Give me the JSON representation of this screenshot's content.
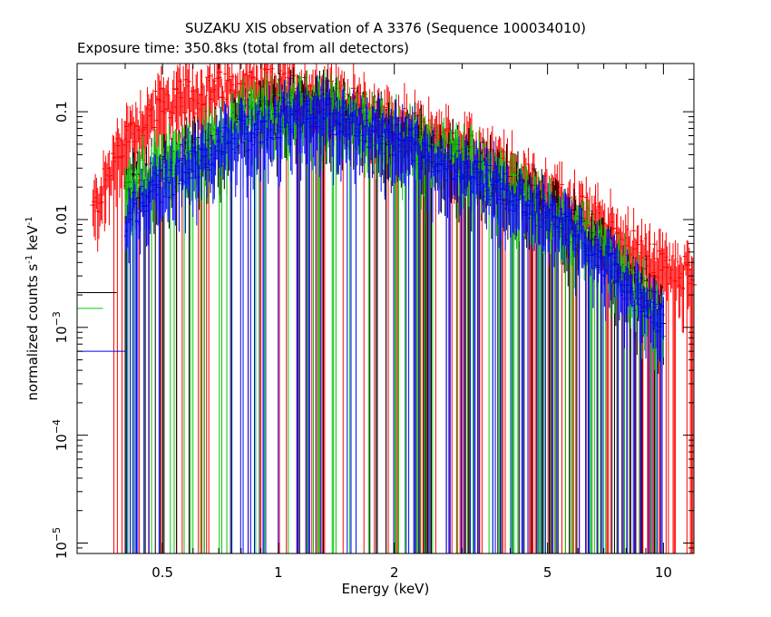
{
  "chart_data": {
    "type": "scatter",
    "title": "SUZAKU XIS observation of A 3376 (Sequence 100034010)",
    "subtitle": "Exposure time: 350.8ks (total from all detectors)",
    "xlabel": "Energy (keV)",
    "ylabel_main": "normalized counts s",
    "ylabel_sup1": "-1",
    "ylabel_mid": " keV",
    "ylabel_sup2": "-1",
    "x_scale": "log",
    "y_scale": "log",
    "xlim": [
      0.3,
      12
    ],
    "ylim": [
      8e-06,
      0.28
    ],
    "x_ticks": [
      {
        "value": 0.5,
        "label": "0.5"
      },
      {
        "value": 1,
        "label": "1"
      },
      {
        "value": 2,
        "label": "2"
      },
      {
        "value": 5,
        "label": "5"
      },
      {
        "value": 10,
        "label": "10"
      }
    ],
    "y_ticks": [
      {
        "value": 0.1,
        "base": "0.1",
        "exp": ""
      },
      {
        "value": 0.01,
        "base": "0.01",
        "exp": ""
      },
      {
        "value": 0.001,
        "base": "10",
        "exp": "−3"
      },
      {
        "value": 0.0001,
        "base": "10",
        "exp": "−4"
      },
      {
        "value": 1e-05,
        "base": "10",
        "exp": "−5"
      }
    ],
    "grid": false,
    "legend": "none",
    "series": [
      {
        "color": "#ff0000",
        "points": [
          [
            0.33,
            0.012
          ],
          [
            0.4,
            0.06
          ],
          [
            0.5,
            0.12
          ],
          [
            0.6,
            0.14
          ],
          [
            0.7,
            0.16
          ],
          [
            0.8,
            0.17
          ],
          [
            1.0,
            0.17
          ],
          [
            1.2,
            0.15
          ],
          [
            1.5,
            0.12
          ],
          [
            2.0,
            0.08
          ],
          [
            3.0,
            0.045
          ],
          [
            4.0,
            0.028
          ],
          [
            5.0,
            0.018
          ],
          [
            6.0,
            0.012
          ],
          [
            7.0,
            0.009
          ],
          [
            8.0,
            0.006
          ],
          [
            10.0,
            0.0035
          ],
          [
            12.0,
            0.003
          ]
        ]
      },
      {
        "color": "#000000",
        "points": [
          [
            0.4,
            0.02
          ],
          [
            0.5,
            0.028
          ],
          [
            0.6,
            0.038
          ],
          [
            0.7,
            0.055
          ],
          [
            0.8,
            0.075
          ],
          [
            1.0,
            0.1
          ],
          [
            1.2,
            0.11
          ],
          [
            1.5,
            0.09
          ],
          [
            2.0,
            0.06
          ],
          [
            3.0,
            0.035
          ],
          [
            4.0,
            0.02
          ],
          [
            5.0,
            0.012
          ],
          [
            6.0,
            0.008
          ],
          [
            7.0,
            0.0045
          ],
          [
            8.0,
            0.003
          ],
          [
            10.0,
            0.0012
          ]
        ]
      },
      {
        "color": "#00cc00",
        "points": [
          [
            0.4,
            0.022
          ],
          [
            0.5,
            0.032
          ],
          [
            0.6,
            0.042
          ],
          [
            0.7,
            0.06
          ],
          [
            0.8,
            0.08
          ],
          [
            1.0,
            0.1
          ],
          [
            1.2,
            0.11
          ],
          [
            1.5,
            0.09
          ],
          [
            2.0,
            0.06
          ],
          [
            3.0,
            0.035
          ],
          [
            4.0,
            0.02
          ],
          [
            5.0,
            0.012
          ],
          [
            6.0,
            0.008
          ],
          [
            7.0,
            0.005
          ],
          [
            8.0,
            0.003
          ],
          [
            10.0,
            0.0012
          ]
        ]
      },
      {
        "color": "#0000ff",
        "points": [
          [
            0.4,
            0.01
          ],
          [
            0.5,
            0.022
          ],
          [
            0.6,
            0.032
          ],
          [
            0.7,
            0.045
          ],
          [
            0.8,
            0.06
          ],
          [
            1.0,
            0.085
          ],
          [
            1.2,
            0.1
          ],
          [
            1.5,
            0.085
          ],
          [
            2.0,
            0.055
          ],
          [
            3.0,
            0.03
          ],
          [
            4.0,
            0.018
          ],
          [
            5.0,
            0.011
          ],
          [
            6.0,
            0.007
          ],
          [
            7.0,
            0.004
          ],
          [
            8.0,
            0.0025
          ],
          [
            10.0,
            0.0012
          ]
        ]
      }
    ]
  }
}
